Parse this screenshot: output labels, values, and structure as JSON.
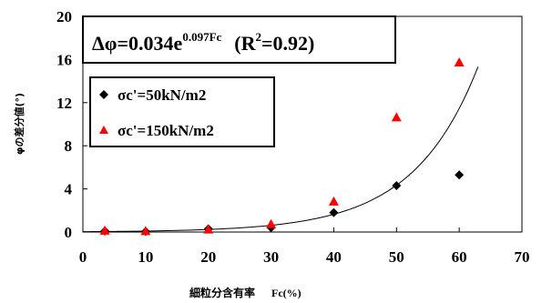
{
  "chart_data": {
    "type": "scatter",
    "xlabel_jp": "細粒分含有率",
    "xlabel_unit": "Fc(%)",
    "ylabel": "φの差分値(°)",
    "xlim": [
      0,
      70
    ],
    "ylim": [
      0,
      20
    ],
    "x_ticks": [
      "0",
      "10",
      "20",
      "30",
      "40",
      "50",
      "60",
      "70"
    ],
    "y_ticks": [
      "0",
      "4",
      "8",
      "12",
      "16",
      "20"
    ],
    "equation": {
      "lhs": "Δφ=0.034e",
      "exponent": "0.097Fc",
      "r2_open": "(R",
      "r2_sup": "2",
      "r2_close": "=0.92)"
    },
    "fit": {
      "a": 0.034,
      "b": 0.097,
      "x_from": 0,
      "x_to": 63
    },
    "series": [
      {
        "name": "σc'=50kN/m2",
        "marker": "diamond",
        "color": "#000000",
        "points": [
          [
            3.5,
            0.1
          ],
          [
            10,
            0.05
          ],
          [
            20,
            0.3
          ],
          [
            30,
            0.4
          ],
          [
            40,
            1.8
          ],
          [
            50,
            4.3
          ],
          [
            60,
            5.3
          ]
        ]
      },
      {
        "name": "σc'=150kN/m2",
        "marker": "triangle",
        "color": "#ff0000",
        "points": [
          [
            3.5,
            0.1
          ],
          [
            10,
            0.05
          ],
          [
            20,
            0.2
          ],
          [
            30,
            0.7
          ],
          [
            40,
            2.8
          ],
          [
            50,
            10.6
          ],
          [
            60,
            15.7
          ]
        ]
      }
    ],
    "grid": false,
    "legend_position": "upper-left"
  }
}
